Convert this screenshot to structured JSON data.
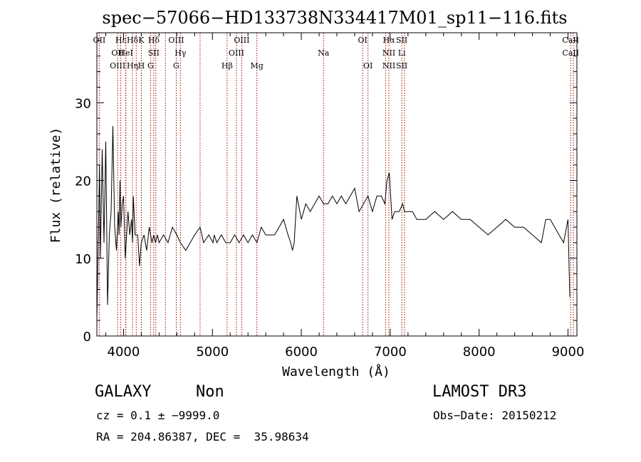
{
  "chart_data": {
    "type": "line",
    "title": "spec−57066−HD133738N334417M01_sp11−116.fits",
    "xlabel": "Wavelength (Å)",
    "ylabel": "Flux (relative)",
    "xlim": [
      3700,
      9100
    ],
    "ylim": [
      0,
      39
    ],
    "x_ticks": [
      4000,
      5000,
      6000,
      7000,
      8000,
      9000
    ],
    "y_ticks": [
      0,
      10,
      20,
      30
    ],
    "line_color": "#000000",
    "marker_color": "#aa0000",
    "series": [
      {
        "x": [
          3700,
          3720,
          3730,
          3740,
          3760,
          3780,
          3800,
          3820,
          3840,
          3860,
          3880,
          3900,
          3920,
          3940,
          3950,
          3960,
          3970,
          3985,
          4000,
          4020,
          4050,
          4070,
          4090,
          4101,
          4110,
          4130,
          4160,
          4180,
          4200,
          4230,
          4260,
          4290,
          4320,
          4340,
          4360,
          4380,
          4400,
          4450,
          4500,
          4550,
          4600,
          4640,
          4700,
          4750,
          4800,
          4861,
          4900,
          4959,
          5007,
          5020,
          5050,
          5100,
          5150,
          5200,
          5250,
          5300,
          5350,
          5400,
          5450,
          5500,
          5550,
          5600,
          5650,
          5700,
          5750,
          5800,
          5850,
          5880,
          5900,
          5920,
          5950,
          6000,
          6050,
          6100,
          6150,
          6200,
          6250,
          6300,
          6350,
          6400,
          6450,
          6500,
          6550,
          6600,
          6650,
          6700,
          6750,
          6800,
          6850,
          6900,
          6940,
          6963,
          6990,
          7020,
          7050,
          7100,
          7140,
          7160,
          7200,
          7250,
          7300,
          7400,
          7500,
          7600,
          7700,
          7800,
          7900,
          8000,
          8100,
          8200,
          8300,
          8400,
          8500,
          8600,
          8700,
          8750,
          8800,
          8850,
          8900,
          8950,
          9000,
          9020
        ],
        "y": [
          2,
          15,
          22,
          10,
          24,
          12,
          25,
          4,
          13,
          16,
          27,
          14,
          11,
          16,
          13,
          20,
          14,
          17,
          18,
          10,
          16,
          13,
          15,
          12,
          18,
          13,
          13,
          9,
          12,
          13,
          11,
          14,
          12,
          13,
          12,
          13,
          12,
          13,
          12,
          14,
          13,
          12,
          11,
          12,
          13,
          14,
          12,
          13,
          12,
          13,
          12,
          13,
          12,
          12,
          13,
          12,
          13,
          12,
          13,
          12,
          14,
          13,
          13,
          13,
          14,
          15,
          13,
          12,
          11,
          12,
          18,
          15,
          17,
          16,
          17,
          18,
          17,
          17,
          18,
          17,
          18,
          17,
          18,
          19,
          16,
          17,
          18,
          16,
          18,
          18,
          17,
          20,
          21,
          15,
          16,
          16,
          17,
          16,
          16,
          16,
          15,
          15,
          16,
          15,
          16,
          15,
          15,
          14,
          13,
          14,
          15,
          14,
          14,
          13,
          12,
          15,
          15,
          14,
          13,
          12,
          15,
          5
        ]
      }
    ],
    "lines": [
      {
        "x": 3727,
        "top": "OII",
        "mid": "",
        "bot": ""
      },
      {
        "x": 3934,
        "top": "",
        "mid": "OII",
        "bot": "OIII"
      },
      {
        "x": 3969,
        "top": "Hε",
        "mid": "",
        "bot": ""
      },
      {
        "x": 4026,
        "top": "",
        "mid": "HeI",
        "bot": ""
      },
      {
        "x": 4101,
        "top": "Hδ",
        "mid": "",
        "bot": "Hη"
      },
      {
        "x": 4026,
        "top": "",
        "mid": "",
        "bot": ""
      },
      {
        "x": 4143,
        "top": "",
        "mid": "",
        "bot": ""
      },
      {
        "x": 4200,
        "top": "K",
        "mid": "",
        "bot": "H"
      },
      {
        "x": 4304,
        "top": "",
        "mid": "",
        "bot": "G"
      },
      {
        "x": 4340,
        "top": "Hδ",
        "mid": "SII",
        "bot": ""
      },
      {
        "x": 4363,
        "top": "",
        "mid": "",
        "bot": ""
      },
      {
        "x": 4471,
        "top": "",
        "mid": "",
        "bot": ""
      },
      {
        "x": 4593,
        "top": "OIII",
        "mid": "",
        "bot": "G"
      },
      {
        "x": 4640,
        "top": "",
        "mid": "Hγ",
        "bot": ""
      },
      {
        "x": 4861,
        "top": "",
        "mid": "",
        "bot": ""
      },
      {
        "x": 5165,
        "top": "",
        "mid": "",
        "bot": "Hβ"
      },
      {
        "x": 5270,
        "top": "",
        "mid": "OIII",
        "bot": ""
      },
      {
        "x": 5330,
        "top": "OIII",
        "mid": "",
        "bot": ""
      },
      {
        "x": 5500,
        "top": "",
        "mid": "",
        "bot": "Mg"
      },
      {
        "x": 6250,
        "top": "",
        "mid": "Na",
        "bot": ""
      },
      {
        "x": 6690,
        "top": "OI",
        "mid": "",
        "bot": ""
      },
      {
        "x": 6750,
        "top": "",
        "mid": "",
        "bot": "OI"
      },
      {
        "x": 6948,
        "top": "",
        "mid": "",
        "bot": ""
      },
      {
        "x": 6985,
        "top": "Hα",
        "mid": "NII",
        "bot": "NII"
      },
      {
        "x": 7130,
        "top": "SII",
        "mid": "Li",
        "bot": "SII"
      },
      {
        "x": 7160,
        "top": "",
        "mid": "",
        "bot": ""
      },
      {
        "x": 9030,
        "top": "CaII",
        "mid": "CaII",
        "bot": ""
      },
      {
        "x": 9060,
        "top": "",
        "mid": "",
        "bot": ""
      }
    ]
  },
  "info": {
    "class_label": "GALAXY",
    "subclass_label": "Non",
    "survey_label": "LAMOST DR3",
    "cz_line": "cz = 0.1 ± −9999.0",
    "obs_date_line": "Obs−Date: 20150212",
    "radec_line": "RA = 204.86387, DEC =  35.98634"
  }
}
